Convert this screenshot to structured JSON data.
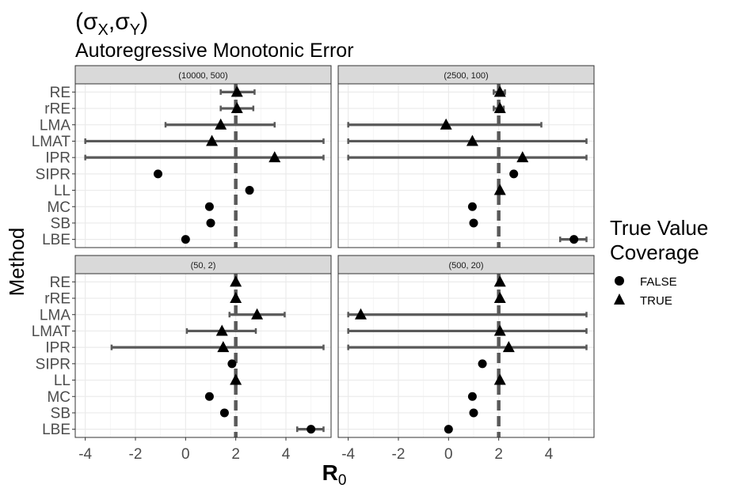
{
  "title_sigma": "σ",
  "title_sub_x": "X",
  "title_sub_y": "Y",
  "subtitle": "Autoregressive Monotonic Error",
  "chart_data": {
    "type": "scatter",
    "facet_type": "point-range (estimate with interval)",
    "xlabel_main": "R",
    "xlabel_sub": "0",
    "ylabel": "Method",
    "x_ticks": [
      -4,
      -2,
      0,
      2,
      4
    ],
    "xlim": [
      -4.4,
      5.8
    ],
    "methods": [
      "RE",
      "rRE",
      "LMA",
      "LMAT",
      "IPR",
      "SIPR",
      "LL",
      "MC",
      "SB",
      "LBE"
    ],
    "reference_line": 2,
    "legend": {
      "title": [
        "True Value",
        "Coverage"
      ],
      "placement": "right",
      "entries": [
        {
          "label": "FALSE",
          "shape": "circle"
        },
        {
          "label": "TRUE",
          "shape": "triangle"
        }
      ]
    },
    "colors": {
      "points": "#000000",
      "intervals": "#595959",
      "reference": "#595959",
      "strip": "#d9d9d9",
      "grid": "#ebebeb"
    },
    "panels": [
      {
        "label": "(10000, 500)",
        "points": [
          {
            "method": "RE",
            "est": 2.05,
            "lo": 1.4,
            "hi": 2.75,
            "coverage": "TRUE"
          },
          {
            "method": "rRE",
            "est": 2.05,
            "lo": 1.4,
            "hi": 2.7,
            "coverage": "TRUE"
          },
          {
            "method": "LMA",
            "est": 1.4,
            "lo": -0.8,
            "hi": 3.55,
            "coverage": "TRUE"
          },
          {
            "method": "LMAT",
            "est": 1.05,
            "lo": -4.0,
            "hi": 5.5,
            "coverage": "TRUE"
          },
          {
            "method": "IPR",
            "est": 3.55,
            "lo": -4.0,
            "hi": 5.5,
            "coverage": "TRUE"
          },
          {
            "method": "SIPR",
            "est": -1.1,
            "lo": null,
            "hi": null,
            "coverage": "FALSE"
          },
          {
            "method": "LL",
            "est": 2.55,
            "lo": null,
            "hi": null,
            "coverage": "FALSE"
          },
          {
            "method": "MC",
            "est": 0.95,
            "lo": null,
            "hi": null,
            "coverage": "FALSE"
          },
          {
            "method": "SB",
            "est": 1.0,
            "lo": null,
            "hi": null,
            "coverage": "FALSE"
          },
          {
            "method": "LBE",
            "est": 0.0,
            "lo": null,
            "hi": null,
            "coverage": "FALSE"
          }
        ]
      },
      {
        "label": "(2500, 100)",
        "points": [
          {
            "method": "RE",
            "est": 2.05,
            "lo": 1.8,
            "hi": 2.25,
            "coverage": "TRUE"
          },
          {
            "method": "rRE",
            "est": 2.05,
            "lo": 1.8,
            "hi": 2.2,
            "coverage": "TRUE"
          },
          {
            "method": "LMA",
            "est": -0.1,
            "lo": -4.0,
            "hi": 3.7,
            "coverage": "TRUE"
          },
          {
            "method": "LMAT",
            "est": 0.95,
            "lo": -4.0,
            "hi": 5.5,
            "coverage": "TRUE"
          },
          {
            "method": "IPR",
            "est": 2.95,
            "lo": -4.0,
            "hi": 5.5,
            "coverage": "TRUE"
          },
          {
            "method": "SIPR",
            "est": 2.6,
            "lo": null,
            "hi": null,
            "coverage": "FALSE"
          },
          {
            "method": "LL",
            "est": 2.05,
            "lo": null,
            "hi": null,
            "coverage": "TRUE"
          },
          {
            "method": "MC",
            "est": 0.95,
            "lo": null,
            "hi": null,
            "coverage": "FALSE"
          },
          {
            "method": "SB",
            "est": 1.0,
            "lo": null,
            "hi": null,
            "coverage": "FALSE"
          },
          {
            "method": "LBE",
            "est": 5.0,
            "lo": 4.45,
            "hi": 5.5,
            "coverage": "FALSE"
          }
        ]
      },
      {
        "label": "(50, 2)",
        "points": [
          {
            "method": "RE",
            "est": 2.0,
            "lo": null,
            "hi": null,
            "coverage": "TRUE"
          },
          {
            "method": "rRE",
            "est": 2.0,
            "lo": null,
            "hi": null,
            "coverage": "TRUE"
          },
          {
            "method": "LMA",
            "est": 2.85,
            "lo": 1.75,
            "hi": 3.95,
            "coverage": "TRUE"
          },
          {
            "method": "LMAT",
            "est": 1.45,
            "lo": 0.05,
            "hi": 2.8,
            "coverage": "TRUE"
          },
          {
            "method": "IPR",
            "est": 1.5,
            "lo": -2.95,
            "hi": 5.5,
            "coverage": "TRUE"
          },
          {
            "method": "SIPR",
            "est": 1.85,
            "lo": null,
            "hi": null,
            "coverage": "FALSE"
          },
          {
            "method": "LL",
            "est": 2.0,
            "lo": null,
            "hi": null,
            "coverage": "TRUE"
          },
          {
            "method": "MC",
            "est": 0.95,
            "lo": null,
            "hi": null,
            "coverage": "FALSE"
          },
          {
            "method": "SB",
            "est": 1.55,
            "lo": null,
            "hi": null,
            "coverage": "FALSE"
          },
          {
            "method": "LBE",
            "est": 5.0,
            "lo": 4.45,
            "hi": 5.5,
            "coverage": "FALSE"
          }
        ]
      },
      {
        "label": "(500, 20)",
        "points": [
          {
            "method": "RE",
            "est": 2.05,
            "lo": null,
            "hi": null,
            "coverage": "TRUE"
          },
          {
            "method": "rRE",
            "est": 2.05,
            "lo": null,
            "hi": null,
            "coverage": "TRUE"
          },
          {
            "method": "LMA",
            "est": -3.5,
            "lo": -4.0,
            "hi": 5.5,
            "coverage": "TRUE"
          },
          {
            "method": "LMAT",
            "est": 2.05,
            "lo": -4.0,
            "hi": 5.5,
            "coverage": "TRUE"
          },
          {
            "method": "IPR",
            "est": 2.4,
            "lo": -4.0,
            "hi": 5.5,
            "coverage": "TRUE"
          },
          {
            "method": "SIPR",
            "est": 1.35,
            "lo": null,
            "hi": null,
            "coverage": "FALSE"
          },
          {
            "method": "LL",
            "est": 2.05,
            "lo": null,
            "hi": null,
            "coverage": "TRUE"
          },
          {
            "method": "MC",
            "est": 0.95,
            "lo": null,
            "hi": null,
            "coverage": "FALSE"
          },
          {
            "method": "SB",
            "est": 1.0,
            "lo": null,
            "hi": null,
            "coverage": "FALSE"
          },
          {
            "method": "LBE",
            "est": 0.0,
            "lo": null,
            "hi": null,
            "coverage": "FALSE"
          }
        ]
      }
    ]
  }
}
